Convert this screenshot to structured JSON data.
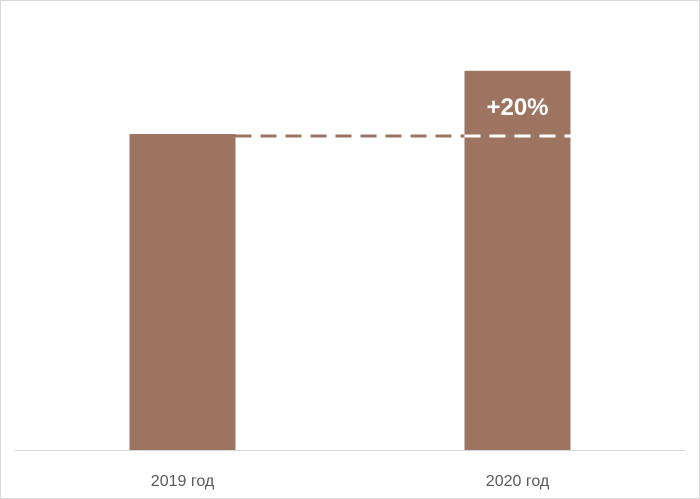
{
  "chart_data": {
    "type": "bar",
    "categories": [
      "2019 год",
      "2020 год"
    ],
    "values": [
      100,
      120
    ],
    "ylim": [
      0,
      125
    ],
    "title": "",
    "xlabel": "",
    "ylabel": "",
    "grid": false,
    "bar_color": "#9c7460",
    "axis_color": "#d9d9d9",
    "reference_line_color": "#9c7460",
    "annotation": {
      "text": "+20%",
      "category": "2020 год",
      "color": "#ffffff"
    }
  }
}
